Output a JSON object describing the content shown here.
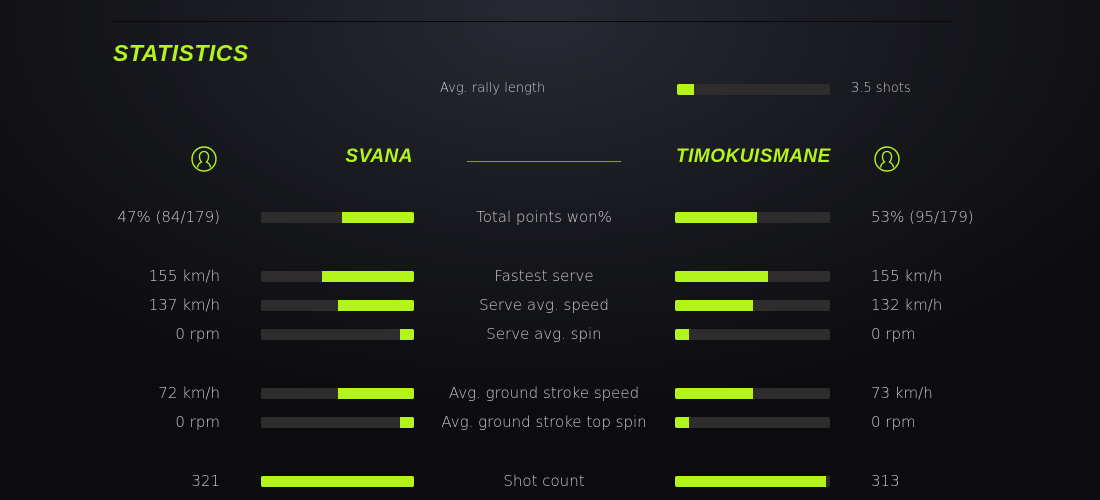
{
  "title": "STATISTICS",
  "accent_color": "#b3f41b",
  "rally": {
    "label": "Avg. rally length",
    "value": "3.5 shots",
    "fraction": 0.11
  },
  "players": {
    "left": {
      "name": "SVANA",
      "icon": "user-circle-icon"
    },
    "right": {
      "name": "TIMOKUISMANE",
      "icon": "user-circle-icon"
    }
  },
  "stats": [
    {
      "label": "Total points won%",
      "left": "47% (84/179)",
      "right": "53% (95/179)",
      "left_fraction": 0.47,
      "right_fraction": 0.53
    },
    {
      "label": "Fastest serve",
      "left": "155 km/h",
      "right": "155 km/h",
      "left_fraction": 0.6,
      "right_fraction": 0.6
    },
    {
      "label": "Serve avg. speed",
      "left": "137 km/h",
      "right": "132 km/h",
      "left_fraction": 0.5,
      "right_fraction": 0.5
    },
    {
      "label": "Serve avg. spin",
      "left": "0 rpm",
      "right": "0 rpm",
      "left_fraction": 0.09,
      "right_fraction": 0.09
    },
    {
      "label": "Avg. ground stroke speed",
      "left": "72 km/h",
      "right": "73 km/h",
      "left_fraction": 0.5,
      "right_fraction": 0.5
    },
    {
      "label": "Avg. ground stroke top spin",
      "left": "0 rpm",
      "right": "0 rpm",
      "left_fraction": 0.09,
      "right_fraction": 0.09
    },
    {
      "label": "Shot count",
      "left": "321",
      "right": "313",
      "left_fraction": 1.0,
      "right_fraction": 0.975
    }
  ]
}
